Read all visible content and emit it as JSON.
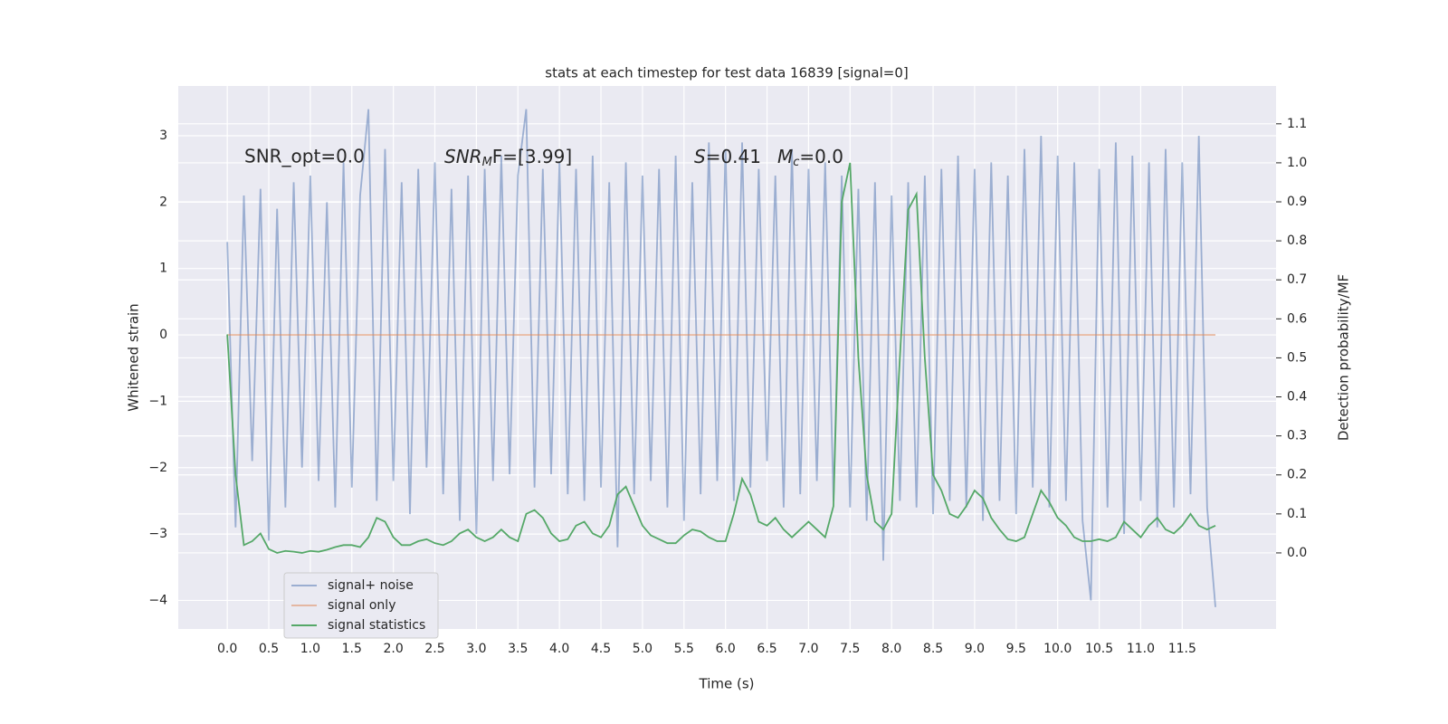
{
  "chart_data": {
    "type": "line",
    "title": "stats at each timestep for test data 16839 [signal=0]",
    "xlabel": "Time (s)",
    "ylabel": "Whitened strain",
    "y2label": "Detection probability/MF",
    "annotations": [
      [
        "SNR_opt=0.0"
      ],
      [
        "SNR",
        "M",
        "F=[3.99]"
      ],
      [
        "S",
        "=0.41",
        "M",
        "c",
        "=0.0"
      ]
    ],
    "x": [
      0.0,
      0.1,
      0.2,
      0.3,
      0.4,
      0.5,
      0.6,
      0.7,
      0.8,
      0.9,
      1.0,
      1.1,
      1.2,
      1.3,
      1.4,
      1.5,
      1.6,
      1.7,
      1.8,
      1.9,
      2.0,
      2.1,
      2.2,
      2.3,
      2.4,
      2.5,
      2.6,
      2.7,
      2.8,
      2.9,
      3.0,
      3.1,
      3.2,
      3.3,
      3.4,
      3.5,
      3.6,
      3.7,
      3.8,
      3.9,
      4.0,
      4.1,
      4.2,
      4.3,
      4.4,
      4.5,
      4.6,
      4.7,
      4.8,
      4.9,
      5.0,
      5.1,
      5.2,
      5.3,
      5.4,
      5.5,
      5.6,
      5.7,
      5.8,
      5.9,
      6.0,
      6.1,
      6.2,
      6.3,
      6.4,
      6.5,
      6.6,
      6.7,
      6.8,
      6.9,
      7.0,
      7.1,
      7.2,
      7.3,
      7.4,
      7.5,
      7.6,
      7.7,
      7.8,
      7.9,
      8.0,
      8.1,
      8.2,
      8.3,
      8.4,
      8.5,
      8.6,
      8.7,
      8.8,
      8.9,
      9.0,
      9.1,
      9.2,
      9.3,
      9.4,
      9.5,
      9.6,
      9.7,
      9.8,
      9.9,
      10.0,
      10.1,
      10.2,
      10.3,
      10.4,
      10.5,
      10.6,
      10.7,
      10.8,
      10.9,
      11.0,
      11.1,
      11.2,
      11.3,
      11.4,
      11.5,
      11.6,
      11.7,
      11.8,
      11.9
    ],
    "series": [
      {
        "name": "signal+ noise",
        "color": "#4c72b0",
        "opacity": 0.5,
        "values": [
          1.4,
          -2.9,
          2.1,
          -1.9,
          2.2,
          -3.1,
          1.9,
          -2.6,
          2.3,
          -2.0,
          2.4,
          -2.2,
          2.0,
          -2.6,
          2.6,
          -2.3,
          2.1,
          3.4,
          -2.5,
          2.8,
          -2.2,
          2.3,
          -2.7,
          2.5,
          -2.0,
          2.6,
          -2.4,
          2.2,
          -2.8,
          2.4,
          -3.0,
          2.5,
          -2.2,
          2.7,
          -2.1,
          2.4,
          3.4,
          -2.3,
          2.5,
          -2.1,
          2.6,
          -2.4,
          2.5,
          -2.5,
          2.7,
          -2.3,
          2.3,
          -3.2,
          2.6,
          -2.4,
          2.4,
          -2.2,
          2.5,
          -2.6,
          2.7,
          -2.8,
          2.3,
          -2.4,
          2.9,
          -2.2,
          2.8,
          -2.5,
          2.9,
          -2.3,
          2.5,
          -1.9,
          2.4,
          -2.6,
          2.8,
          -2.4,
          2.5,
          -2.2,
          2.6,
          -2.5,
          2.4,
          -2.6,
          2.2,
          -2.8,
          2.3,
          -3.4,
          2.1,
          -2.5,
          2.3,
          -2.6,
          2.4,
          -2.7,
          2.5,
          -2.5,
          2.7,
          -2.6,
          2.5,
          -2.8,
          2.6,
          -2.5,
          2.4,
          -2.7,
          2.8,
          -2.3,
          3.0,
          -2.6,
          2.7,
          -2.5,
          2.6,
          -2.8,
          -4.0,
          2.5,
          -2.6,
          2.9,
          -3.0,
          2.7,
          -2.5,
          2.6,
          -2.9,
          2.8,
          -2.6,
          2.6,
          -2.4,
          3.0,
          -2.6,
          -4.1
        ]
      },
      {
        "name": "signal only",
        "color": "#dd8452",
        "opacity": 0.5,
        "x": [
          0.0,
          11.9
        ],
        "values": [
          0,
          0
        ]
      },
      {
        "name": "signal statistics",
        "color": "#55a868",
        "opacity": 1,
        "axis": "y2",
        "values": [
          0.56,
          0.2,
          0.02,
          0.03,
          0.05,
          0.01,
          0.0,
          0.005,
          0.003,
          0.0,
          0.005,
          0.003,
          0.008,
          0.015,
          0.02,
          0.02,
          0.015,
          0.04,
          0.09,
          0.08,
          0.04,
          0.02,
          0.02,
          0.03,
          0.035,
          0.025,
          0.02,
          0.03,
          0.05,
          0.06,
          0.04,
          0.03,
          0.04,
          0.06,
          0.04,
          0.03,
          0.1,
          0.11,
          0.09,
          0.05,
          0.03,
          0.035,
          0.07,
          0.08,
          0.05,
          0.04,
          0.07,
          0.15,
          0.17,
          0.12,
          0.07,
          0.045,
          0.035,
          0.025,
          0.025,
          0.045,
          0.06,
          0.055,
          0.04,
          0.03,
          0.03,
          0.1,
          0.19,
          0.15,
          0.08,
          0.07,
          0.09,
          0.06,
          0.04,
          0.06,
          0.08,
          0.06,
          0.04,
          0.12,
          0.9,
          1.0,
          0.5,
          0.2,
          0.08,
          0.06,
          0.1,
          0.5,
          0.88,
          0.92,
          0.5,
          0.2,
          0.16,
          0.1,
          0.09,
          0.12,
          0.16,
          0.14,
          0.09,
          0.06,
          0.035,
          0.03,
          0.04,
          0.1,
          0.16,
          0.13,
          0.09,
          0.07,
          0.04,
          0.03,
          0.03,
          0.035,
          0.03,
          0.04,
          0.08,
          0.06,
          0.04,
          0.07,
          0.09,
          0.06,
          0.05,
          0.07,
          0.1,
          0.07,
          0.06,
          0.07
        ]
      }
    ],
    "xlim": [
      -0.59,
      12.63
    ],
    "ylim": [
      -4.43,
      3.75
    ],
    "y2lim": [
      -0.195,
      1.197
    ],
    "xticks": [
      {
        "value": 0,
        "label": "0.0"
      },
      {
        "value": 0.5,
        "label": "0.5"
      },
      {
        "value": 1,
        "label": "1.0"
      },
      {
        "value": 1.5,
        "label": "1.5"
      },
      {
        "value": 2,
        "label": "2.0"
      },
      {
        "value": 2.5,
        "label": "2.5"
      },
      {
        "value": 3,
        "label": "3.0"
      },
      {
        "value": 3.5,
        "label": "3.5"
      },
      {
        "value": 4,
        "label": "4.0"
      },
      {
        "value": 4.5,
        "label": "4.5"
      },
      {
        "value": 5,
        "label": "5.0"
      },
      {
        "value": 5.5,
        "label": "5.5"
      },
      {
        "value": 6,
        "label": "6.0"
      },
      {
        "value": 6.5,
        "label": "6.5"
      },
      {
        "value": 7,
        "label": "7.0"
      },
      {
        "value": 7.5,
        "label": "7.5"
      },
      {
        "value": 8,
        "label": "8.0"
      },
      {
        "value": 8.5,
        "label": "8.5"
      },
      {
        "value": 9,
        "label": "9.0"
      },
      {
        "value": 9.5,
        "label": "9.5"
      },
      {
        "value": 10,
        "label": "10.0"
      },
      {
        "value": 10.5,
        "label": "10.5"
      },
      {
        "value": 11,
        "label": "11.0"
      },
      {
        "value": 11.5,
        "label": "11.5"
      }
    ],
    "yticks": [
      {
        "value": -4,
        "label": "−4"
      },
      {
        "value": -3,
        "label": "−3"
      },
      {
        "value": -2,
        "label": "−2"
      },
      {
        "value": -1,
        "label": "−1"
      },
      0,
      1,
      2,
      3
    ],
    "y2ticks": [
      {
        "value": 0,
        "label": "0.0"
      },
      {
        "value": 0.1,
        "label": "0.1"
      },
      {
        "value": 0.2,
        "label": "0.2"
      },
      {
        "value": 0.3,
        "label": "0.3"
      },
      {
        "value": 0.4,
        "label": "0.4"
      },
      {
        "value": 0.5,
        "label": "0.5"
      },
      {
        "value": 0.6,
        "label": "0.6"
      },
      {
        "value": 0.7,
        "label": "0.7"
      },
      {
        "value": 0.8,
        "label": "0.8"
      },
      {
        "value": 0.9,
        "label": "0.9"
      },
      {
        "value": 1,
        "label": "1.0"
      },
      {
        "value": 1.1,
        "label": "1.1"
      }
    ],
    "grid": true,
    "legend_loc": "lower left"
  }
}
